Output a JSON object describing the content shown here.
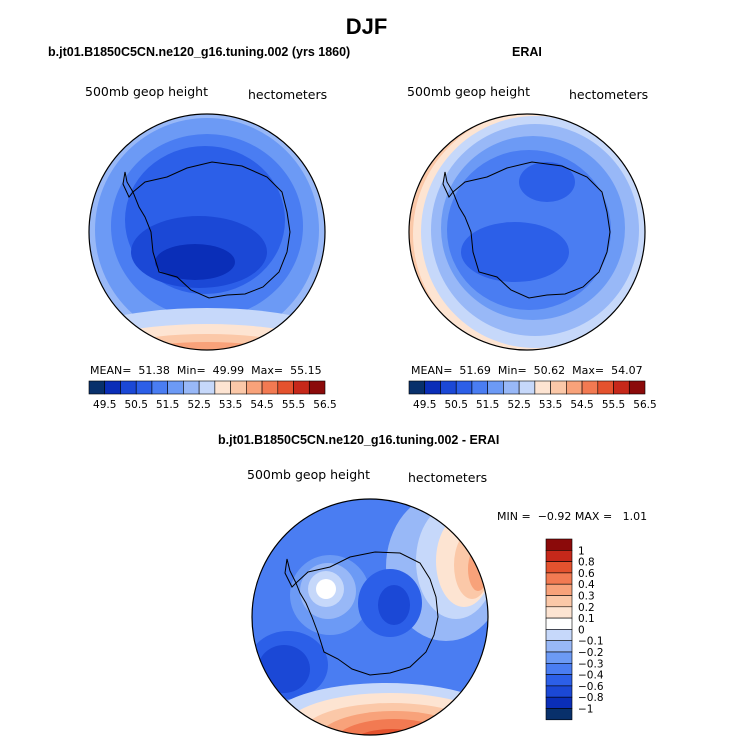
{
  "figure_title": "DJF",
  "chart_data": [
    {
      "type": "heatmap",
      "projection": "south-polar-stereographic",
      "title": "b.jt01.B1850C5CN.ne120_g16.tuning.002 (yrs 1860)",
      "left_label": "500mb geop height",
      "right_label": "hectometers",
      "stats": {
        "mean_label": "MEAN=",
        "mean": "51.38",
        "min_label": "Min=",
        "min": "49.99",
        "max_label": "Max=",
        "max": "55.15"
      },
      "colorbar": {
        "orientation": "horizontal",
        "tick_labels": [
          "49.5",
          "50.5",
          "51.5",
          "52.5",
          "53.5",
          "54.5",
          "55.5",
          "56.5"
        ],
        "boundaries": [
          49.5,
          50,
          50.5,
          51,
          51.5,
          52,
          52.5,
          53,
          53.5,
          54,
          54.5,
          55,
          55.5,
          56,
          56.5
        ],
        "colors": [
          "#08306b",
          "#0a2eb8",
          "#1b48d6",
          "#2c5fe8",
          "#4a7df2",
          "#6c9af5",
          "#98b8f7",
          "#c6d8fa",
          "#fde4d2",
          "#fbc8a8",
          "#f8a27a",
          "#f27a52",
          "#e4522e",
          "#c6281a",
          "#8b0a0a"
        ]
      }
    },
    {
      "type": "heatmap",
      "projection": "south-polar-stereographic",
      "title": "ERAI",
      "left_label": "500mb geop height",
      "right_label": "hectometers",
      "stats": {
        "mean_label": "MEAN=",
        "mean": "51.69",
        "min_label": "Min=",
        "min": "50.62",
        "max_label": "Max=",
        "max": "54.07"
      },
      "colorbar": {
        "orientation": "horizontal",
        "tick_labels": [
          "49.5",
          "50.5",
          "51.5",
          "52.5",
          "53.5",
          "54.5",
          "55.5",
          "56.5"
        ],
        "boundaries": [
          49.5,
          50,
          50.5,
          51,
          51.5,
          52,
          52.5,
          53,
          53.5,
          54,
          54.5,
          55,
          55.5,
          56,
          56.5
        ],
        "colors": [
          "#08306b",
          "#0a2eb8",
          "#1b48d6",
          "#2c5fe8",
          "#4a7df2",
          "#6c9af5",
          "#98b8f7",
          "#c6d8fa",
          "#fde4d2",
          "#fbc8a8",
          "#f8a27a",
          "#f27a52",
          "#e4522e",
          "#c6281a",
          "#8b0a0a"
        ]
      }
    },
    {
      "type": "heatmap",
      "projection": "south-polar-stereographic",
      "title": "b.jt01.B1850C5CN.ne120_g16.tuning.002 - ERAI",
      "left_label": "500mb geop height",
      "right_label": "hectometers",
      "stats": {
        "min_label": "MIN =",
        "min": "−0.92",
        "max_label": "MAX =",
        "max": "1.01"
      },
      "colorbar": {
        "orientation": "vertical",
        "tick_labels": [
          "1",
          "0.8",
          "0.6",
          "0.4",
          "0.3",
          "0.2",
          "0.1",
          "0",
          "−0.1",
          "−0.2",
          "−0.3",
          "−0.4",
          "−0.6",
          "−0.8",
          "−1"
        ],
        "colors_top_to_bottom": [
          "#8b0a0a",
          "#c6281a",
          "#e4522e",
          "#f27a52",
          "#f8a27a",
          "#fbc8a8",
          "#fde4d2",
          "#ffffff",
          "#c6d8fa",
          "#98b8f7",
          "#6c9af5",
          "#4a7df2",
          "#2c5fe8",
          "#1b48d6",
          "#0a2eb8",
          "#08306b"
        ]
      }
    }
  ]
}
